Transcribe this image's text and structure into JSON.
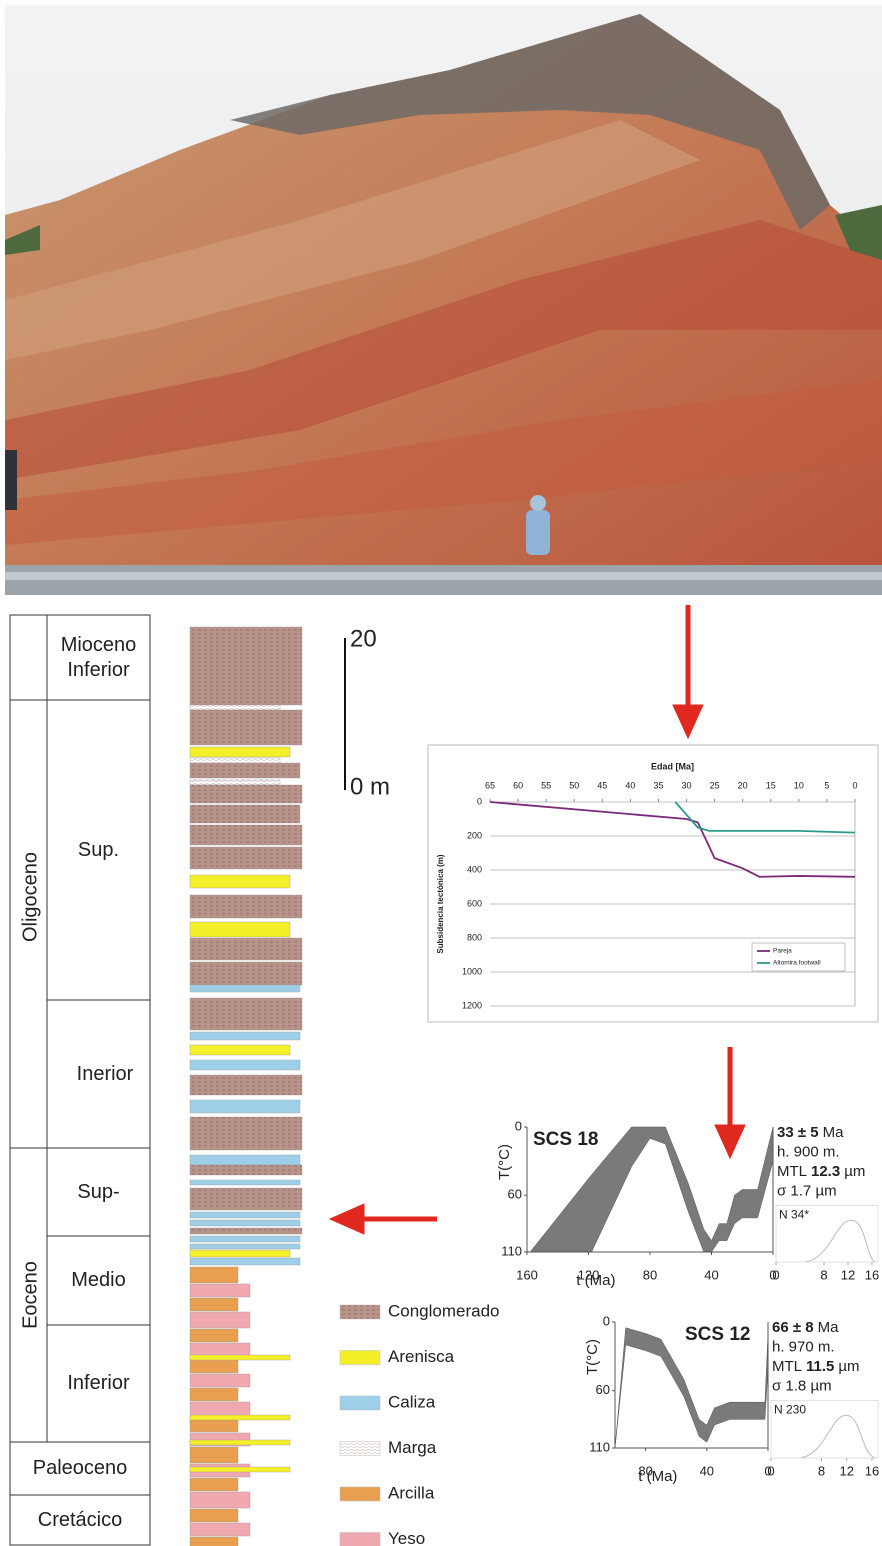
{
  "stratigraphy": {
    "periods": [
      "Oligoceno",
      "Eoceno"
    ],
    "units": [
      "Mioceno Inferior",
      "Sup.",
      "Inerior",
      "Sup-",
      "Medio",
      "Inferior",
      "Paleoceno",
      "Cretácico"
    ]
  },
  "scale_bar": {
    "top": "20",
    "bottom": "0 m"
  },
  "legend": [
    "Conglomerado",
    "Arenisca",
    "Caliza",
    "Marga",
    "Arcilla",
    "Yeso"
  ],
  "chart_data": [
    {
      "type": "line",
      "x_label": "Edad [Ma]",
      "y_label": "Subsidencia tectónica (m)",
      "xlim": [
        65,
        0
      ],
      "xticks": [
        65,
        60,
        55,
        50,
        45,
        40,
        35,
        30,
        25,
        20,
        15,
        10,
        5,
        0
      ],
      "ylim": [
        0,
        1200
      ],
      "yticks": [
        0,
        200,
        400,
        600,
        800,
        1000,
        1200
      ],
      "grid": true,
      "legend": "lower right",
      "series": [
        {
          "name": "Pareja",
          "color": "#7b2a7b",
          "x": [
            65,
            30,
            28,
            25,
            20,
            17,
            10,
            0
          ],
          "values": [
            0,
            100,
            120,
            330,
            390,
            440,
            435,
            440
          ]
        },
        {
          "name": "Altomira footwall",
          "color": "#2a9a8a",
          "x": [
            32,
            28,
            26,
            10,
            0
          ],
          "values": [
            0,
            150,
            170,
            170,
            180
          ]
        }
      ]
    },
    {
      "type": "band",
      "title": "SCS 18",
      "x_label": "t (Ma)",
      "y_label": "T(°C)",
      "color": "#7a7a7a",
      "xlim": [
        160,
        0
      ],
      "xticks": [
        160,
        120,
        80,
        40,
        0
      ],
      "ylim": [
        0,
        110
      ],
      "yticks": [
        0,
        60,
        110
      ],
      "x": [
        158,
        118,
        92,
        80,
        70,
        55,
        45,
        40,
        35,
        30,
        25,
        20,
        10,
        0
      ],
      "lower": [
        110,
        42,
        0,
        0,
        0,
        50,
        90,
        100,
        85,
        85,
        60,
        55,
        55,
        0
      ],
      "upper": [
        110,
        110,
        35,
        10,
        15,
        75,
        110,
        110,
        100,
        100,
        85,
        80,
        80,
        30
      ],
      "info": {
        "age": "33 ± 5",
        "age_unit": "Ma",
        "elevation": "h. 900 m.",
        "mtl_label": "MTL",
        "mtl": "12.3",
        "mtl_unit": "µm",
        "sigma": "σ 1.7 µm",
        "n": "N 34*"
      },
      "inset": {
        "xlim": [
          0,
          16
        ],
        "xticks": [
          0,
          8,
          12,
          16
        ]
      }
    },
    {
      "type": "band",
      "title": "SCS 12",
      "x_label": "t (Ma)",
      "y_label": "T(°C)",
      "color": "#7a7a7a",
      "xlim": [
        100,
        0
      ],
      "xticks": [
        80,
        40,
        0
      ],
      "ylim": [
        0,
        110
      ],
      "yticks": [
        0,
        60,
        110
      ],
      "x": [
        100,
        93,
        80,
        70,
        55,
        45,
        40,
        35,
        25,
        10,
        2,
        0
      ],
      "lower": [
        110,
        5,
        10,
        15,
        50,
        85,
        90,
        75,
        70,
        70,
        70,
        10
      ],
      "upper": [
        110,
        20,
        25,
        30,
        65,
        100,
        105,
        90,
        85,
        85,
        85,
        40
      ],
      "info": {
        "age": "66 ± 8",
        "age_unit": "Ma",
        "elevation": "h. 970 m.",
        "mtl_label": "MTL",
        "mtl": "11.5",
        "mtl_unit": "µm",
        "sigma": "σ 1.8 µm",
        "n": "N 230"
      },
      "inset": {
        "xlim": [
          0,
          16
        ],
        "xticks": [
          0,
          8,
          12,
          16
        ]
      }
    }
  ]
}
